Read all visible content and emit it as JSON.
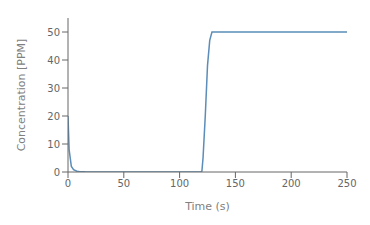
{
  "chart_data": {
    "type": "line",
    "xlabel": "Time (s)",
    "ylabel": "Concentration [PPM]",
    "x": [
      0,
      1,
      3,
      5,
      8,
      10,
      15,
      20,
      30,
      40,
      50,
      60,
      70,
      80,
      90,
      100,
      110,
      119,
      120,
      121,
      123,
      125,
      127,
      129,
      131,
      140,
      160,
      200,
      240,
      250
    ],
    "values": [
      20,
      8,
      2,
      0.8,
      0.3,
      0.15,
      0.05,
      0.02,
      0.01,
      0.01,
      0.01,
      0.01,
      0.01,
      0.01,
      0.01,
      0.01,
      0.01,
      0.01,
      0.3,
      5,
      20,
      38,
      47,
      50,
      50,
      50,
      50,
      50,
      50,
      50
    ],
    "color": "#5B8DB8",
    "xlim": [
      0,
      250
    ],
    "ylim": [
      0,
      55
    ],
    "xticks": [
      0,
      50,
      100,
      150,
      200,
      250
    ],
    "yticks": [
      0,
      10,
      20,
      30,
      40,
      50
    ]
  }
}
